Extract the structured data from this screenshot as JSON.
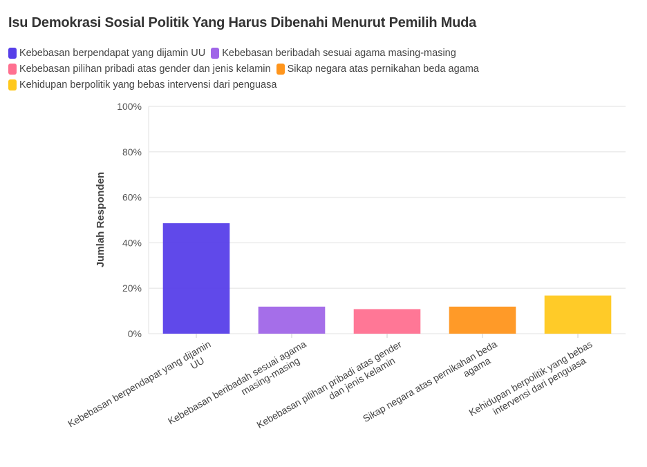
{
  "chart_data": {
    "type": "bar",
    "title": "Isu Demokrasi Sosial Politik Yang Harus Dibenahi Menurut Pemilih Muda",
    "ylabel": "Jumlah Responden",
    "xlabel": "",
    "ylim": [
      0,
      100
    ],
    "yticks": [
      0,
      20,
      40,
      60,
      80,
      100
    ],
    "ytick_labels": [
      "0%",
      "20%",
      "40%",
      "60%",
      "80%",
      "100%"
    ],
    "grid": true,
    "legend_placement": "top-left",
    "categories": [
      "Kebebasan berpendapat yang dijamin UU",
      "Kebebasan beribadah sesuai agama masing-masing",
      "Kebebasan pilihan pribadi atas gender dan jenis kelamin",
      "Sikap negara atas pernikahan beda agama",
      "Kehidupan berpolitik yang bebas intervensi dari penguasa"
    ],
    "tick_labels": [
      [
        "Kebebasan berpendapat yang dijamin",
        "UU"
      ],
      [
        "Kebebasan beribadah sesuai agama",
        "masing-masing"
      ],
      [
        "Kebebasan pilihan pribadi atas gender",
        "dan jenis kelamin"
      ],
      [
        "Sikap negara atas pernikahan beda",
        "agama"
      ],
      [
        "Kehidupan berpolitik yang bebas",
        "intervensi dari penguasa"
      ]
    ],
    "values": [
      48.6,
      11.9,
      10.8,
      11.9,
      16.8
    ],
    "unit": "%",
    "colors": [
      "#573fe9",
      "#a066e8",
      "#ff7090",
      "#ff951c",
      "#ffc81c"
    ]
  }
}
